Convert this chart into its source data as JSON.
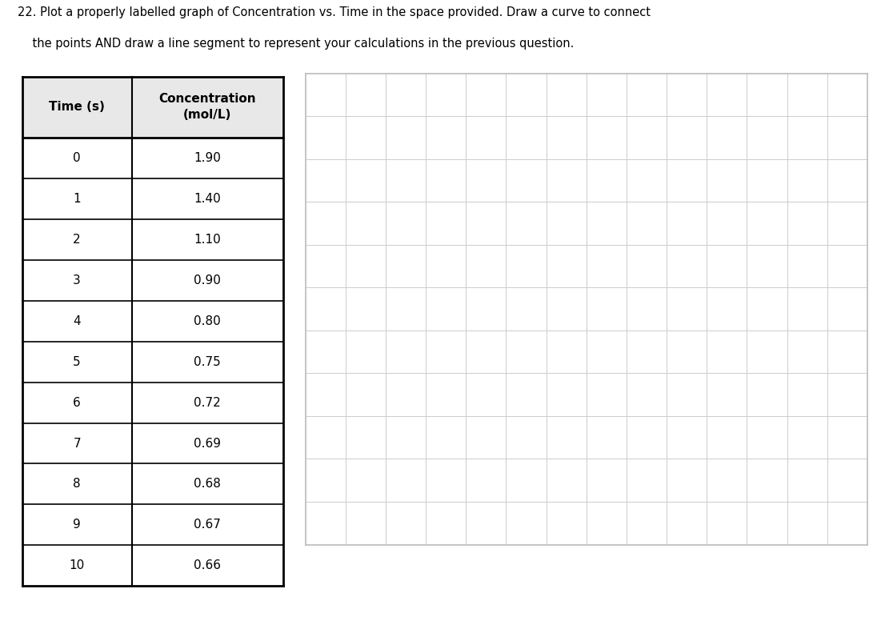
{
  "title_line1": "22. Plot a properly labelled graph of Concentration vs. Time in the space provided. Draw a curve to connect",
  "title_line2": "    the points AND draw a line segment to represent your calculations in the previous question.",
  "time_values": [
    0,
    1,
    2,
    3,
    4,
    5,
    6,
    7,
    8,
    9,
    10
  ],
  "conc_values": [
    "1.90",
    "1.40",
    "1.10",
    "0.90",
    "0.80",
    "0.75",
    "0.72",
    "0.69",
    "0.68",
    "0.67",
    "0.66"
  ],
  "background_color": "#ffffff",
  "table_border_color": "#000000",
  "table_header_bg": "#e8e8e8",
  "grid_line_color": "#cccccc",
  "grid_border_color": "#bbbbbb",
  "grid_cols": 14,
  "grid_rows": 11,
  "text_color": "#000000",
  "font_size_title": 10.5,
  "font_size_table_header": 11,
  "font_size_table_data": 11
}
